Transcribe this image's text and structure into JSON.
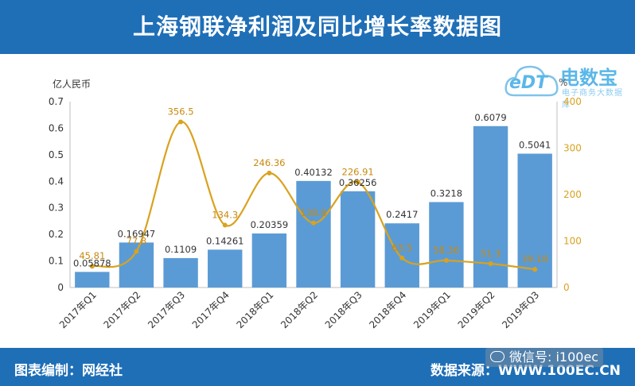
{
  "header": {
    "title": "上海钢联净利润及同比增长率数据图"
  },
  "footer": {
    "left": "图表编制：网经社",
    "right": "数据来源：WWW.100EC.CN",
    "wechat": "微信号: i100ec"
  },
  "logo": {
    "main": "电数宝",
    "sub": "电子商务大数据库",
    "cloud_text": "eDT"
  },
  "colors": {
    "header_bg": "#1f6fb7",
    "bar": "#5b9bd5",
    "line": "#d9a21f",
    "line_label": "#c88a10",
    "bar_label": "#333333"
  },
  "chart_data": {
    "type": "bar",
    "categories": [
      "2017年Q1",
      "2017年Q2",
      "2017年Q3",
      "2017年Q4",
      "2018年Q1",
      "2018年Q2",
      "2018年Q3",
      "2018年Q4",
      "2019年Q1",
      "2019年Q2",
      "2019年Q3"
    ],
    "series": [
      {
        "type": "bar",
        "axis": "left",
        "values": [
          0.05878,
          0.16947,
          0.1109,
          0.14261,
          0.20359,
          0.40132,
          0.36256,
          0.2417,
          0.3218,
          0.6079,
          0.5041
        ]
      },
      {
        "type": "line",
        "axis": "right",
        "smooth": true,
        "values": [
          45.81,
          77.8,
          356.5,
          134.3,
          246.36,
          138.8,
          226.91,
          63.5,
          58.36,
          51.3,
          39.18
        ]
      }
    ],
    "bar_labels": [
      "0.05878",
      "0.16947",
      "0.1109",
      "0.14261",
      "0.20359",
      "0.40132",
      "0.36256",
      "0.2417",
      "0.3218",
      "0.6079",
      "0.5041"
    ],
    "line_labels": [
      "45.81",
      "77.8",
      "356.5",
      "134.3",
      "246.36",
      "138.8",
      "226.91",
      "63.5",
      "58.36",
      "51.3",
      "39.18"
    ],
    "ylabel_left": "亿人民币",
    "ylabel_right": "%",
    "ylim_left": [
      0,
      0.7
    ],
    "ylim_right": [
      0,
      400
    ],
    "yticks_left": [
      "0",
      "0.1",
      "0.2",
      "0.3",
      "0.4",
      "0.5",
      "0.6",
      "0.7"
    ],
    "yticks_right": [
      "0",
      "100",
      "200",
      "300",
      "400"
    ],
    "grid": false
  }
}
